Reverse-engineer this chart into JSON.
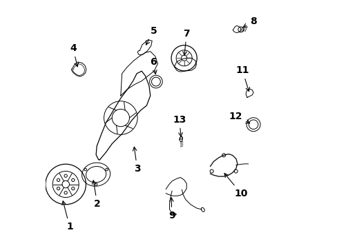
{
  "background_color": "#ffffff",
  "line_color": "#000000",
  "fig_width": 4.89,
  "fig_height": 3.6,
  "dpi": 100,
  "label_fontsize": 10
}
